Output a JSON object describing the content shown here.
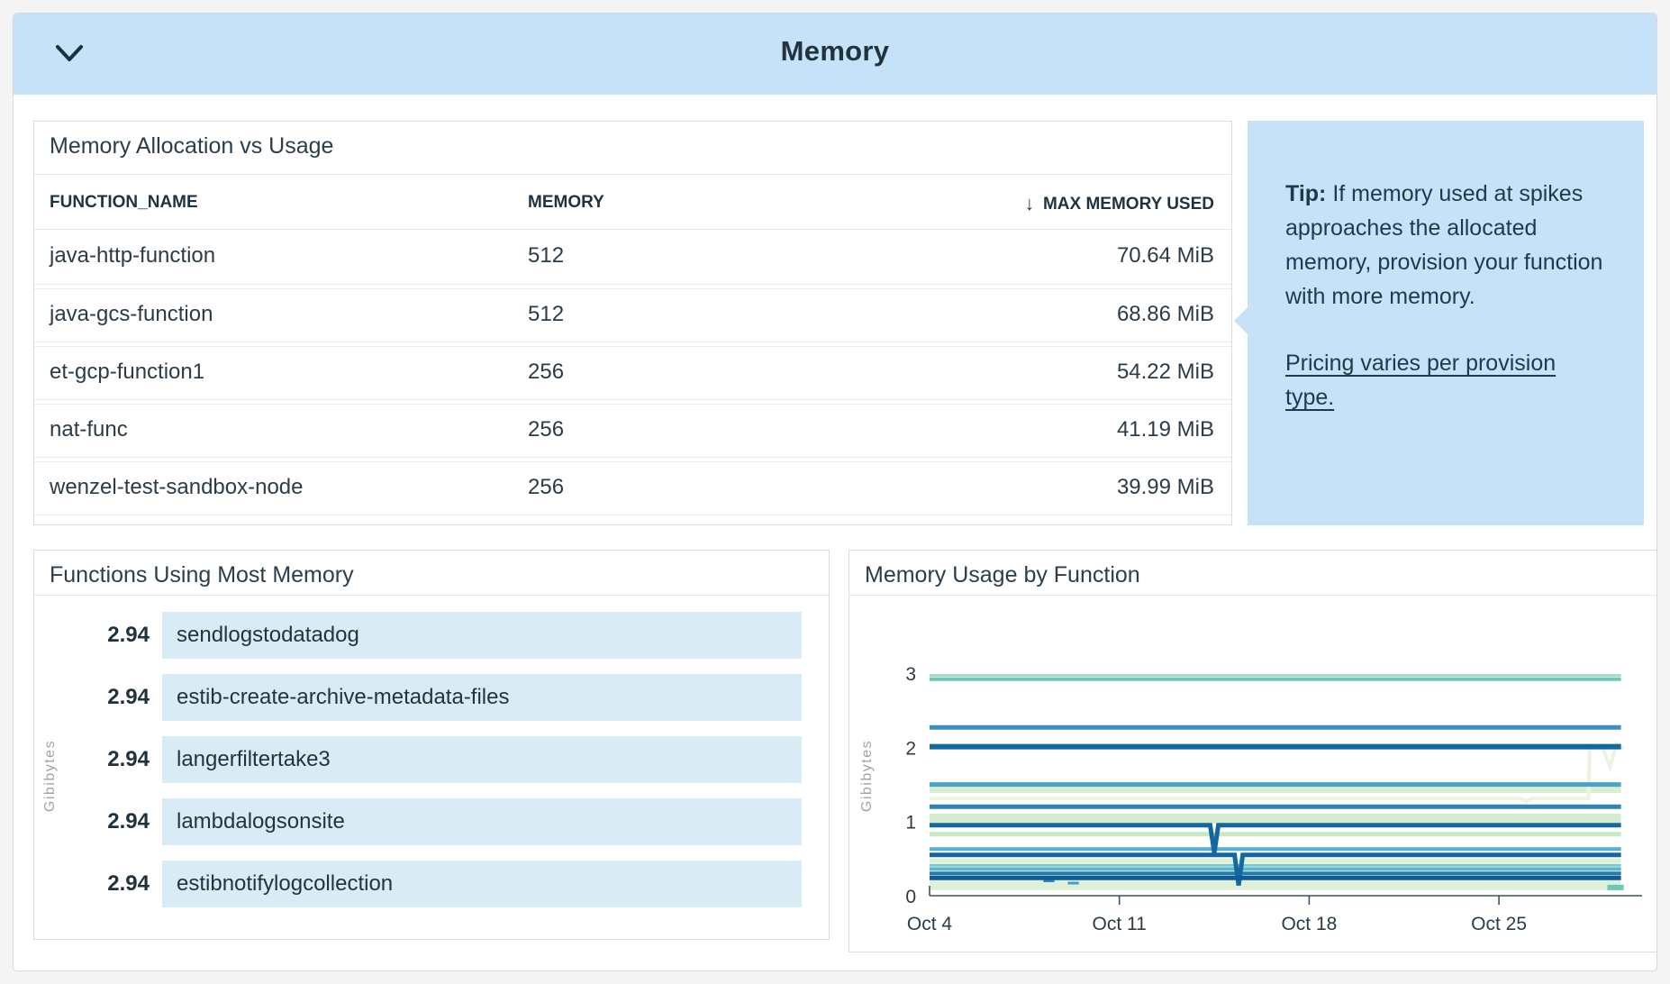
{
  "header": {
    "title": "Memory",
    "collapse_icon": "chevron-down"
  },
  "colors": {
    "accent_blue": "#c5e2f8",
    "bar_fill": "#d9ecf6",
    "title_text": "#22333d",
    "axis_text": "#2b3c46",
    "muted_label": "#9fa5a3"
  },
  "allocation_table": {
    "title": "Memory Allocation vs Usage",
    "columns": [
      "FUNCTION_NAME",
      "MEMORY",
      "MAX MEMORY USED"
    ],
    "sort_icon": "↓",
    "rows": [
      {
        "function_name": "java-http-function",
        "memory": "512",
        "max_memory_used": "70.64 MiB"
      },
      {
        "function_name": "java-gcs-function",
        "memory": "512",
        "max_memory_used": "68.86 MiB"
      },
      {
        "function_name": "et-gcp-function1",
        "memory": "256",
        "max_memory_used": "54.22 MiB"
      },
      {
        "function_name": "nat-func",
        "memory": "256",
        "max_memory_used": "41.19 MiB"
      },
      {
        "function_name": "wenzel-test-sandbox-node",
        "memory": "256",
        "max_memory_used": "39.99 MiB"
      }
    ]
  },
  "tip": {
    "label": "Tip:",
    "text": " If memory used at spikes approaches the allocated memory, provision your function with more memory.",
    "link": "Pricing varies per provision type."
  },
  "top_functions_panel": {
    "title": "Functions Using Most Memory",
    "ylabel": "Gibibytes"
  },
  "usage_panel": {
    "title": "Memory Usage by Function",
    "ylabel": "Gibibytes"
  },
  "chart_data": [
    {
      "type": "bar",
      "title": "Functions Using Most Memory",
      "orientation": "horizontal",
      "ylabel": "Gibibytes",
      "categories": [
        "sendlogstodatadog",
        "estib-create-archive-metadata-files",
        "langerfiltertake3",
        "lambdalogsonsite",
        "estibnotifylogcollection"
      ],
      "values": [
        2.94,
        2.94,
        2.94,
        2.94,
        2.94
      ],
      "value_labels": [
        "2.94",
        "2.94",
        "2.94",
        "2.94",
        "2.94"
      ],
      "xlim": [
        0,
        2.94
      ],
      "bar_color": "#d9ecf6"
    },
    {
      "type": "line",
      "title": "Memory Usage by Function",
      "ylabel": "Gibibytes",
      "ylim": [
        0,
        3
      ],
      "yticks": [
        "0",
        "1",
        "2",
        "3"
      ],
      "xticks": [
        "Oct 4",
        "Oct 11",
        "Oct 18",
        "Oct 25"
      ],
      "xtick_days": [
        4,
        11,
        18,
        25
      ],
      "x_range_days": [
        4,
        29.6
      ],
      "grid": false,
      "legend": "none",
      "series": [
        {
          "name": "green-band-1.44",
          "color": "#d9efd2",
          "width": 9,
          "points": [
            [
              4,
              1.44
            ],
            [
              29.5,
              1.44
            ]
          ]
        },
        {
          "name": "green-band-1.04",
          "color": "#d5edcf",
          "width": 11,
          "points": [
            [
              4,
              1.04
            ],
            [
              29.5,
              1.04
            ]
          ]
        },
        {
          "name": "green-band-0.15",
          "color": "#def1d8",
          "width": 12,
          "points": [
            [
              4,
              0.15
            ],
            [
              29.5,
              0.15
            ]
          ]
        },
        {
          "name": "green-0.83",
          "color": "#c8e7c3",
          "width": 5,
          "points": [
            [
              4,
              0.83
            ],
            [
              29.5,
              0.83
            ]
          ]
        },
        {
          "name": "green-0.47",
          "color": "#dcefd6",
          "width": 5,
          "points": [
            [
              4,
              0.47
            ],
            [
              29.5,
              0.47
            ]
          ]
        },
        {
          "name": "palegreen-1.31-rise",
          "color": "#e9f5e1",
          "width": 4,
          "points": [
            [
              4,
              1.31
            ],
            [
              25.8,
              1.31
            ],
            [
              26.0,
              1.27
            ],
            [
              26.2,
              1.31
            ],
            [
              28.3,
              1.31
            ],
            [
              28.35,
              2.0
            ],
            [
              28.8,
              2.02
            ],
            [
              29.1,
              1.74
            ],
            [
              29.35,
              2.05
            ],
            [
              29.6,
              1.98
            ]
          ]
        },
        {
          "name": "teal-2.97",
          "color": "#a0d9cc",
          "width": 3,
          "points": [
            [
              4,
              2.97
            ],
            [
              29.5,
              2.97
            ]
          ]
        },
        {
          "name": "teal-2.92",
          "color": "#6ec7b6",
          "width": 4,
          "points": [
            [
              4,
              2.92
            ],
            [
              29.5,
              2.92
            ]
          ]
        },
        {
          "name": "teal-0.41",
          "color": "#79cabe",
          "width": 3,
          "points": [
            [
              4,
              0.41
            ],
            [
              29.5,
              0.41
            ]
          ]
        },
        {
          "name": "teal-end-0.11",
          "color": "#6ec7b6",
          "width": 6,
          "points": [
            [
              29.0,
              0.11
            ],
            [
              29.6,
              0.11
            ]
          ]
        },
        {
          "name": "blue-1.50",
          "color": "#4aa3cb",
          "width": 5,
          "points": [
            [
              4,
              1.5
            ],
            [
              29.5,
              1.5
            ]
          ]
        },
        {
          "name": "blue-2.27",
          "color": "#3b90c0",
          "width": 5,
          "points": [
            [
              4,
              2.27
            ],
            [
              29.5,
              2.27
            ]
          ]
        },
        {
          "name": "blue-1.20",
          "color": "#2e84b8",
          "width": 5,
          "points": [
            [
              4,
              1.2
            ],
            [
              29.5,
              1.2
            ]
          ]
        },
        {
          "name": "blue-0.63",
          "color": "#55aed3",
          "width": 4,
          "points": [
            [
              4,
              0.63
            ],
            [
              29.5,
              0.63
            ]
          ]
        },
        {
          "name": "blue-0.36",
          "color": "#58b5d8",
          "width": 4,
          "points": [
            [
              4,
              0.36
            ],
            [
              29.5,
              0.36
            ]
          ]
        },
        {
          "name": "blue-0.30",
          "color": "#2779ae",
          "width": 4,
          "points": [
            [
              4,
              0.3
            ],
            [
              29.5,
              0.3
            ]
          ]
        },
        {
          "name": "dash-0.20",
          "color": "#2e84b8",
          "width": 3,
          "points": [
            [
              8.2,
              0.2
            ],
            [
              8.6,
              0.2
            ]
          ]
        },
        {
          "name": "dash-0.17",
          "color": "#4a9bc4",
          "width": 3,
          "points": [
            [
              9.1,
              0.17
            ],
            [
              9.5,
              0.17
            ]
          ]
        },
        {
          "name": "darkblue-2.01",
          "color": "#15679f",
          "width": 6,
          "points": [
            [
              4,
              2.01
            ],
            [
              29.5,
              2.01
            ]
          ]
        },
        {
          "name": "darkblue-0.95-dip",
          "color": "#15679f",
          "width": 5,
          "points": [
            [
              4,
              0.95
            ],
            [
              14.35,
              0.95
            ],
            [
              14.5,
              0.58
            ],
            [
              14.65,
              0.95
            ],
            [
              29.5,
              0.95
            ]
          ]
        },
        {
          "name": "darkblue-0.55-dip",
          "color": "#15679f",
          "width": 5,
          "points": [
            [
              4,
              0.55
            ],
            [
              15.25,
              0.55
            ],
            [
              15.4,
              0.14
            ],
            [
              15.55,
              0.55
            ],
            [
              29.5,
              0.55
            ]
          ]
        },
        {
          "name": "darkblue-0.24",
          "color": "#0d5c95",
          "width": 5,
          "points": [
            [
              4,
              0.24
            ],
            [
              29.5,
              0.24
            ]
          ]
        }
      ]
    }
  ]
}
